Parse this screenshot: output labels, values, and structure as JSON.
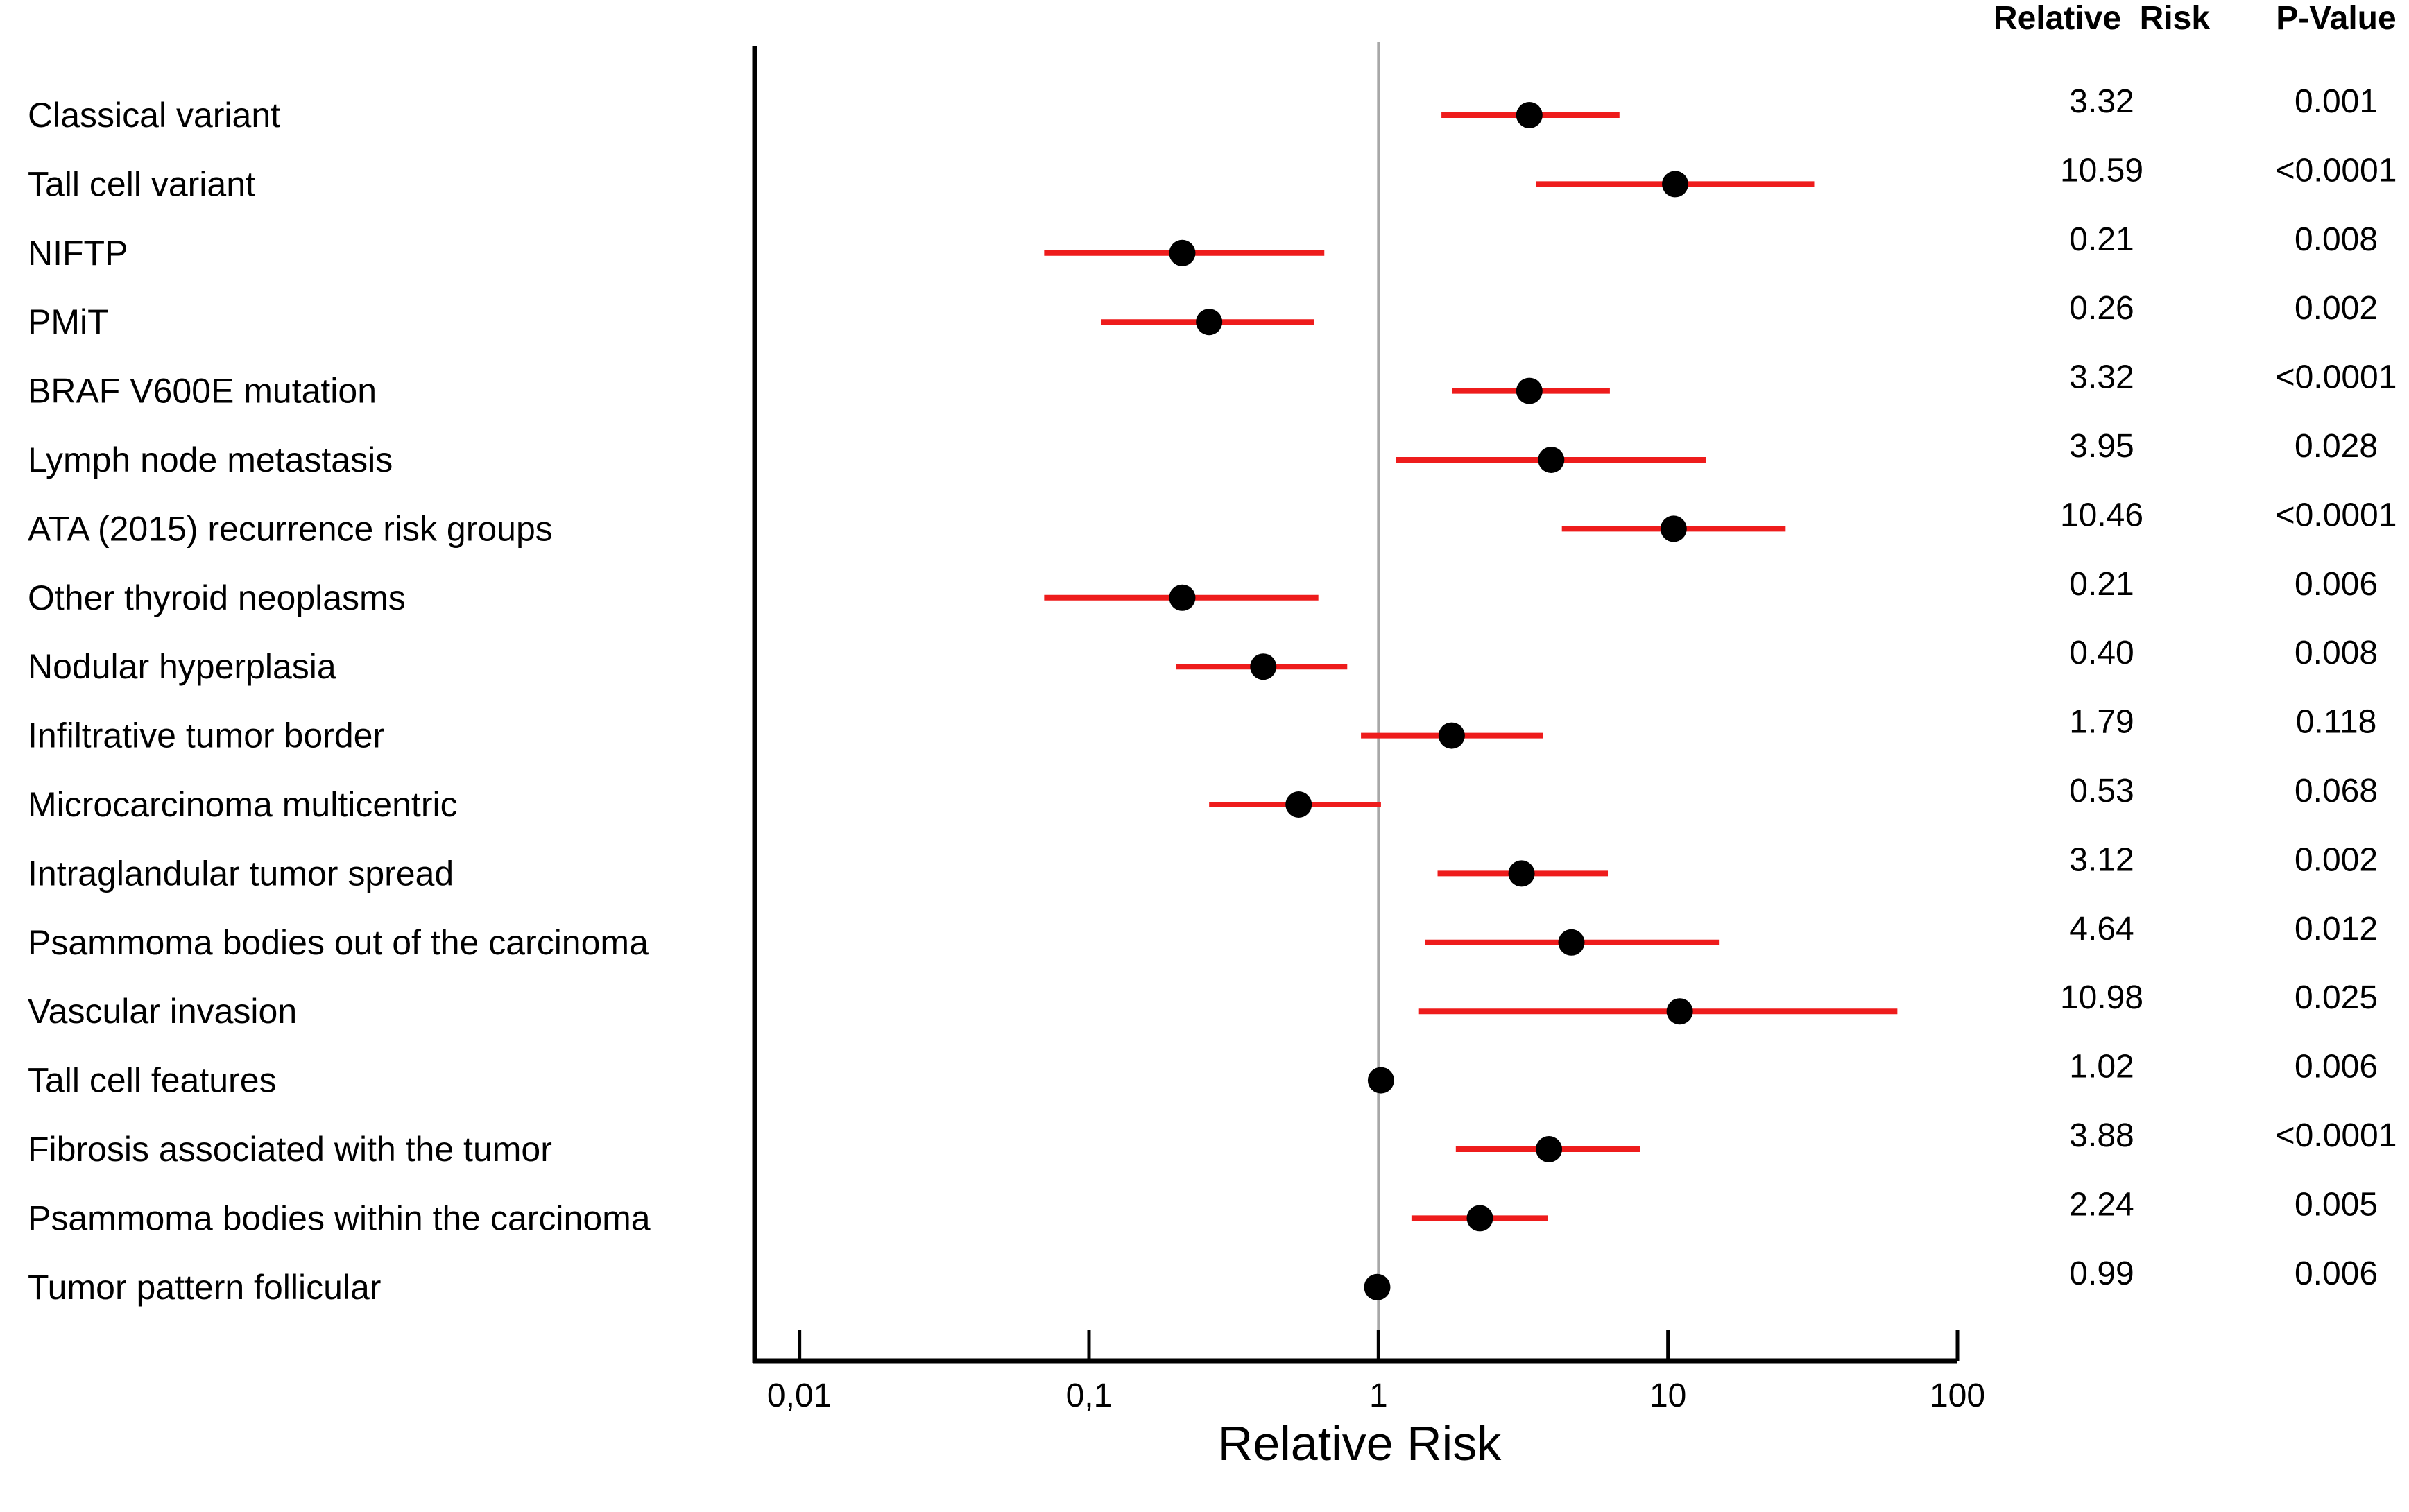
{
  "chart_data": {
    "type": "forest",
    "xscale": "log",
    "xlabel": "Relative Risk",
    "xlim": [
      0.007,
      100
    ],
    "reference_line": 1,
    "xticks": [
      {
        "value": 0.01,
        "label": "0,01"
      },
      {
        "value": 0.1,
        "label": "0,1"
      },
      {
        "value": 1,
        "label": "1"
      },
      {
        "value": 10,
        "label": "10"
      },
      {
        "value": 100,
        "label": "100"
      }
    ],
    "columns": {
      "rr_header": "Relative  Risk",
      "p_header": "P-Value"
    },
    "colors": {
      "ci": "#ee1c1c",
      "point": "#000000",
      "reference": "#a8a8a8",
      "axis": "#000000"
    },
    "rows": [
      {
        "label": "Classical variant",
        "rr": 3.32,
        "lower": 1.65,
        "upper": 6.8,
        "rr_text": "3.32",
        "p_text": "0.001"
      },
      {
        "label": "Tall cell variant",
        "rr": 10.59,
        "lower": 3.5,
        "upper": 32,
        "rr_text": "10.59",
        "p_text": "<0.0001"
      },
      {
        "label": "NIFTP",
        "rr": 0.21,
        "lower": 0.07,
        "upper": 0.65,
        "rr_text": "0.21",
        "p_text": "0.008"
      },
      {
        "label": "PMiT",
        "rr": 0.26,
        "lower": 0.11,
        "upper": 0.6,
        "rr_text": "0.26",
        "p_text": "0.002"
      },
      {
        "label": "BRAF V600E mutation",
        "rr": 3.32,
        "lower": 1.8,
        "upper": 6.3,
        "rr_text": "3.32",
        "p_text": "<0.0001"
      },
      {
        "label": "Lymph node metastasis",
        "rr": 3.95,
        "lower": 1.15,
        "upper": 13.5,
        "rr_text": "3.95",
        "p_text": "0.028"
      },
      {
        "label": "ATA (2015) recurrence risk groups",
        "rr": 10.46,
        "lower": 4.3,
        "upper": 25.5,
        "rr_text": "10.46",
        "p_text": "<0.0001"
      },
      {
        "label": "Other thyroid neoplasms",
        "rr": 0.21,
        "lower": 0.07,
        "upper": 0.62,
        "rr_text": "0.21",
        "p_text": "0.006"
      },
      {
        "label": "Nodular hyperplasia",
        "rr": 0.4,
        "lower": 0.2,
        "upper": 0.78,
        "rr_text": "0.40",
        "p_text": "0.008"
      },
      {
        "label": "Infiltrative tumor border",
        "rr": 1.79,
        "lower": 0.87,
        "upper": 3.7,
        "rr_text": "1.79",
        "p_text": "0.118"
      },
      {
        "label": "Microcarcinoma multicentric",
        "rr": 0.53,
        "lower": 0.26,
        "upper": 1.02,
        "rr_text": "0.53",
        "p_text": "0.068"
      },
      {
        "label": "Intraglandular tumor spread",
        "rr": 3.12,
        "lower": 1.6,
        "upper": 6.2,
        "rr_text": "3.12",
        "p_text": "0.002"
      },
      {
        "label": "Psammoma bodies out of the carcinoma",
        "rr": 4.64,
        "lower": 1.45,
        "upper": 15,
        "rr_text": "4.64",
        "p_text": "0.012"
      },
      {
        "label": "Vascular invasion",
        "rr": 10.98,
        "lower": 1.38,
        "upper": 62,
        "rr_text": "10.98",
        "p_text": "0.025"
      },
      {
        "label": "Tall cell features",
        "rr": 1.02,
        "lower": 1.0,
        "upper": 1.04,
        "rr_text": "1.02",
        "p_text": "0.006"
      },
      {
        "label": "Fibrosis associated with the tumor",
        "rr": 3.88,
        "lower": 1.85,
        "upper": 8.0,
        "rr_text": "3.88",
        "p_text": "<0.0001"
      },
      {
        "label": "Psammoma bodies within the carcinoma",
        "rr": 2.24,
        "lower": 1.3,
        "upper": 3.85,
        "rr_text": "2.24",
        "p_text": "0.005"
      },
      {
        "label": "Tumor pattern follicular",
        "rr": 0.99,
        "lower": 0.97,
        "upper": 1.01,
        "rr_text": "0.99",
        "p_text": "0.006"
      }
    ]
  }
}
